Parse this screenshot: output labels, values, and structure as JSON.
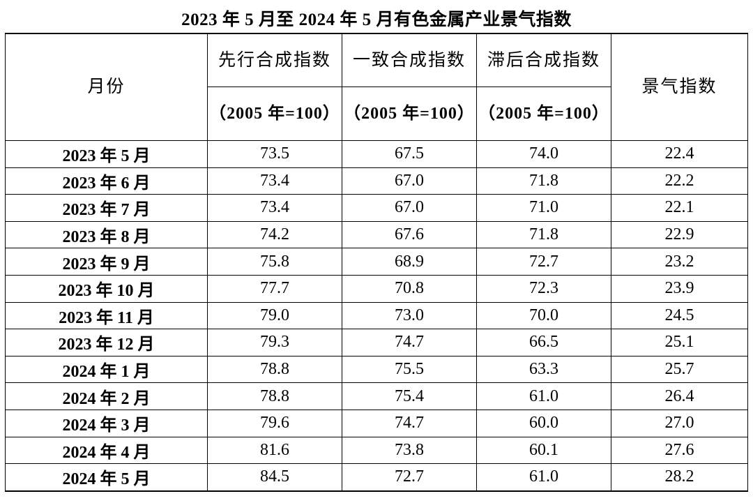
{
  "title": "2023 年 5 月至 2024 年 5 月有色金属产业景气指数",
  "columns": {
    "month": "月份",
    "leading": {
      "name": "先行合成指数",
      "unit": "（2005 年=100）"
    },
    "coincident": {
      "name": "一致合成指数",
      "unit": "（2005 年=100）"
    },
    "lagging": {
      "name": "滞后合成指数",
      "unit": "（2005 年=100）"
    },
    "index": "景气指数"
  },
  "rows": [
    {
      "month": "2023 年 5 月",
      "leading": "73.5",
      "coincident": "67.5",
      "lagging": "74.0",
      "index": "22.4"
    },
    {
      "month": "2023 年 6 月",
      "leading": "73.4",
      "coincident": "67.0",
      "lagging": "71.8",
      "index": "22.2"
    },
    {
      "month": "2023 年 7 月",
      "leading": "73.4",
      "coincident": "67.0",
      "lagging": "71.0",
      "index": "22.1"
    },
    {
      "month": "2023 年 8 月",
      "leading": "74.2",
      "coincident": "67.6",
      "lagging": "71.8",
      "index": "22.9"
    },
    {
      "month": "2023 年 9 月",
      "leading": "75.8",
      "coincident": "68.9",
      "lagging": "72.7",
      "index": "23.2"
    },
    {
      "month": "2023 年 10 月",
      "leading": "77.7",
      "coincident": "70.8",
      "lagging": "72.3",
      "index": "23.9"
    },
    {
      "month": "2023 年 11 月",
      "leading": "79.0",
      "coincident": "73.0",
      "lagging": "70.0",
      "index": "24.5"
    },
    {
      "month": "2023 年 12 月",
      "leading": "79.3",
      "coincident": "74.7",
      "lagging": "66.5",
      "index": "25.1"
    },
    {
      "month": "2024 年 1 月",
      "leading": "78.8",
      "coincident": "75.5",
      "lagging": "63.3",
      "index": "25.7"
    },
    {
      "month": "2024 年 2 月",
      "leading": "78.8",
      "coincident": "75.4",
      "lagging": "61.0",
      "index": "26.4"
    },
    {
      "month": "2024 年 3 月",
      "leading": "79.6",
      "coincident": "74.7",
      "lagging": "60.0",
      "index": "27.0"
    },
    {
      "month": "2024 年 4 月",
      "leading": "81.6",
      "coincident": "73.8",
      "lagging": "60.1",
      "index": "27.6"
    },
    {
      "month": "2024 年 5 月",
      "leading": "84.5",
      "coincident": "72.7",
      "lagging": "61.0",
      "index": "28.2"
    }
  ]
}
